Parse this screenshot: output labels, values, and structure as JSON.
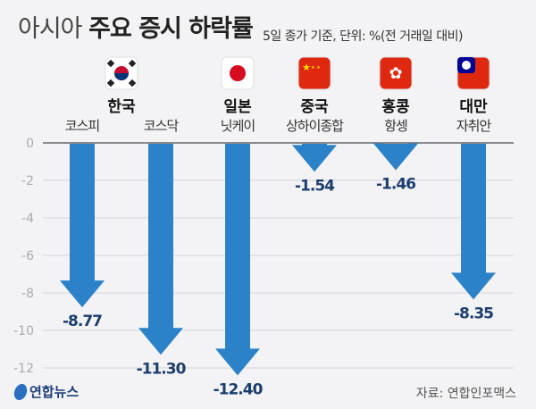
{
  "title_light": "아시아",
  "title_bold": "주요 증시 하락률",
  "subtitle": "5일 종가 기준, 단위: %(전 거래일 대비)",
  "source": "자료: 연합인포맥스",
  "logo": "연합뉴스",
  "colors": {
    "arrow": "#2b82c9",
    "label": "#1b3d6e",
    "grid": "#d6d6d6",
    "axis": "#666"
  },
  "chart_data": {
    "type": "bar",
    "categories": [
      "코스피",
      "코스닥",
      "닛케이",
      "상하이종합",
      "항셍",
      "자취안"
    ],
    "countries": [
      {
        "name": "한국",
        "flag": "korea-flag",
        "span": [
          0,
          1
        ]
      },
      {
        "name": "일본",
        "flag": "japan-flag",
        "span": [
          2,
          2
        ]
      },
      {
        "name": "중국",
        "flag": "china-flag",
        "span": [
          3,
          3
        ]
      },
      {
        "name": "홍콩",
        "flag": "hongkong-flag",
        "span": [
          4,
          4
        ]
      },
      {
        "name": "대만",
        "flag": "taiwan-flag",
        "span": [
          5,
          5
        ]
      }
    ],
    "values": [
      -8.77,
      -11.3,
      -12.4,
      -1.54,
      -1.46,
      -8.35
    ],
    "value_labels": [
      "-8.77",
      "-11.30",
      "-12.40",
      "-1.54",
      "-1.46",
      "-8.35"
    ],
    "yticks": [
      "0",
      "-2",
      "-4",
      "-6",
      "-8",
      "-10",
      "-12"
    ],
    "ylim": [
      -12,
      0
    ],
    "grid": true,
    "mark": "down-arrow"
  }
}
